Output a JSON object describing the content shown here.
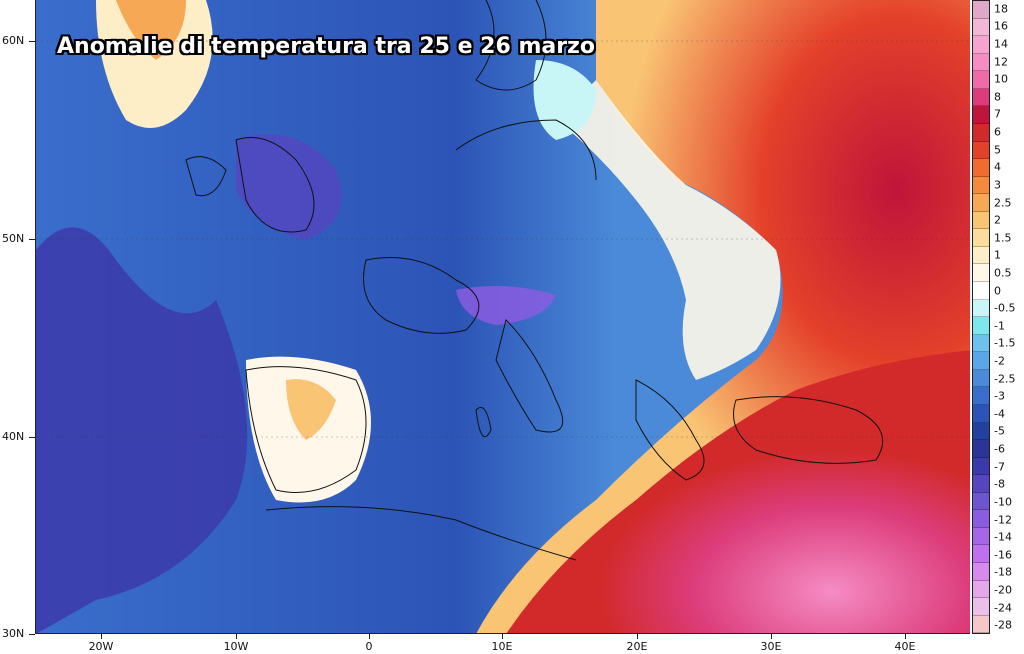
{
  "map": {
    "title": "Anomalie di temperatura tra 25 e 26 marzo",
    "latitude_labels": [
      "60N",
      "50N",
      "40N",
      "30N"
    ],
    "longitude_labels": [
      "20W",
      "10W",
      "0",
      "10E",
      "20E",
      "30E",
      "40E"
    ],
    "legend": {
      "values": [
        "18",
        "16",
        "14",
        "12",
        "10",
        "8",
        "7",
        "6",
        "5",
        "4",
        "3",
        "2.5",
        "2",
        "1.5",
        "1",
        "0.5",
        "0",
        "-0.5",
        "-1",
        "-1.5",
        "-2",
        "-2.5",
        "-3",
        "-4",
        "-5",
        "-6",
        "-7",
        "-8",
        "-10",
        "-12",
        "-14",
        "-16",
        "-18",
        "-20",
        "-24",
        "-28"
      ],
      "colors": [
        "#e0a8c8",
        "#f2b6d6",
        "#f7a3cf",
        "#f58cc4",
        "#ee6aa8",
        "#dc3c7a",
        "#c0143a",
        "#d22a2a",
        "#e4412a",
        "#f06a32",
        "#f58a3c",
        "#f7a854",
        "#f9c474",
        "#fbdc9c",
        "#fdeec8",
        "#fff8ea",
        "#ffffff",
        "#c8f6f6",
        "#7ee7ee",
        "#6ec0ee",
        "#5aa6e6",
        "#4a8ad8",
        "#3a6ecc",
        "#2c54b6",
        "#22409e",
        "#2b3598",
        "#3c3aaa",
        "#5546c0",
        "#6f54d0",
        "#8a5ce0",
        "#a566e8",
        "#c070ee",
        "#d889ee",
        "#e4a7ea",
        "#ecbfe8",
        "#f4c8c8"
      ],
      "accent_colors": {
        "cold": "#2c54b6",
        "warm": "#e4412a",
        "neutral": "#ffffff"
      }
    }
  }
}
